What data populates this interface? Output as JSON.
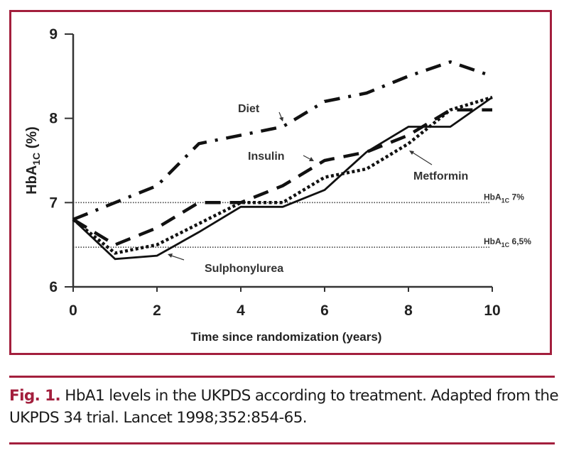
{
  "chart_data": {
    "type": "line",
    "title": "",
    "xlabel": "Time since randomization (years)",
    "ylabel": "HbA1C (%)",
    "ylabel_main": "HbA",
    "ylabel_sub": "1C",
    "ylabel_tail": " (%)",
    "x": [
      0,
      1,
      2,
      3,
      4,
      5,
      6,
      7,
      8,
      9,
      10
    ],
    "xlim": [
      0,
      10
    ],
    "ylim": [
      6,
      9
    ],
    "xticks": [
      0,
      2,
      4,
      6,
      8,
      10
    ],
    "xtick_labels": [
      "0",
      "2",
      "4",
      "6",
      "8",
      "10"
    ],
    "yticks": [
      6,
      7,
      8,
      9
    ],
    "ytick_labels": [
      "6",
      "7",
      "8",
      "9"
    ],
    "grid": false,
    "legend": "inline labels with arrows",
    "series": [
      {
        "name": "Diet",
        "style": "dash-dot",
        "values": [
          6.8,
          7.0,
          7.2,
          7.7,
          7.8,
          7.9,
          8.2,
          8.3,
          8.5,
          8.67,
          8.5
        ]
      },
      {
        "name": "Insulin",
        "style": "dashed",
        "values": [
          6.8,
          6.5,
          6.7,
          7.0,
          7.0,
          7.2,
          7.5,
          7.6,
          7.8,
          8.1,
          8.1
        ]
      },
      {
        "name": "Metformin",
        "style": "dotted",
        "values": [
          6.8,
          6.4,
          6.5,
          6.75,
          7.0,
          7.0,
          7.3,
          7.4,
          7.7,
          8.1,
          8.25
        ]
      },
      {
        "name": "Sulphonylurea",
        "style": "solid",
        "values": [
          6.8,
          6.33,
          6.37,
          6.65,
          6.95,
          6.95,
          7.15,
          7.6,
          7.9,
          7.9,
          8.25
        ]
      }
    ],
    "reference_lines": [
      {
        "value": 7.0,
        "label_main": "HbA",
        "label_sub": "1C",
        "label_tail": " 7%"
      },
      {
        "value": 6.47,
        "label_main": "HbA",
        "label_sub": "1C",
        "label_tail": " 6,5%"
      }
    ]
  },
  "caption": {
    "figure_number": "Fig. 1.",
    "text": " HbA1 levels in the UKPDS according to treatment. Adapted from the UKPDS 34 trial. Lancet 1998;352:854-65."
  },
  "colors": {
    "accent": "#a31f3d",
    "ink": "#1a1a1a"
  }
}
